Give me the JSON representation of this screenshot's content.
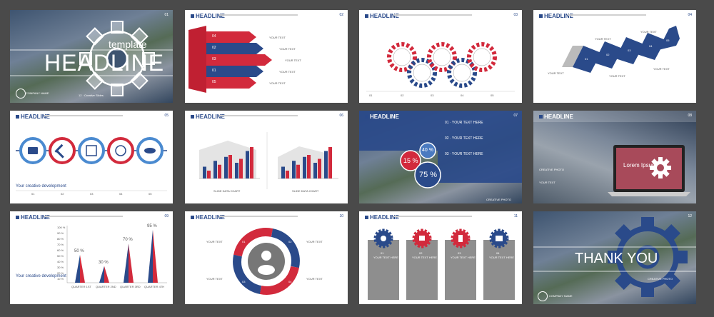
{
  "common": {
    "headline": "HEADLINE",
    "your_text": "YOUR TEXT",
    "your_text_here": "YOUR TEXT HERE",
    "creative_photo": "CREATIVE PHOTO",
    "your_creative_development": "Your creative development",
    "slide_data_chart": "SLIDE DATA CHART",
    "company_name": "COMPANY NAME"
  },
  "slides": {
    "s1": {
      "template": "template",
      "headline": "HEADLINE",
      "footer": "12 · Creative Slides",
      "page": "01"
    },
    "s2": {
      "page": "02",
      "steps": [
        "04",
        "03",
        "02",
        "01",
        "05"
      ]
    },
    "s3": {
      "page": "03",
      "numbers": [
        "01",
        "02",
        "03",
        "04",
        "05"
      ]
    },
    "s4": {
      "page": "04",
      "steps": [
        "01",
        "02",
        "03",
        "04",
        "05"
      ]
    },
    "s5": {
      "page": "05",
      "numbers": [
        "01",
        "02",
        "03",
        "04",
        "05"
      ]
    },
    "s6": {
      "page": "06"
    },
    "s7": {
      "page": "07",
      "items": [
        "01",
        "02",
        "03"
      ],
      "pct": [
        "15 %",
        "40 %",
        "75 %"
      ]
    },
    "s8": {
      "page": "08",
      "lorem": "Lorem Ipsum"
    },
    "s9": {
      "page": "09",
      "pct": [
        "50 %",
        "30 %",
        "70 %",
        "95 %"
      ],
      "quarters": [
        "QUARTER 1ST",
        "QUARTER 2ND",
        "QUARTER 3RD",
        "QUARTER 4TH"
      ],
      "yticks": [
        "100 %",
        "90 %",
        "80 %",
        "70 %",
        "60 %",
        "50 %",
        "40 %",
        "30 %",
        "20 %",
        "10 %"
      ]
    },
    "s10": {
      "page": "10",
      "numbers": [
        "01",
        "02",
        "03",
        "04"
      ]
    },
    "s11": {
      "page": "11",
      "numbers": [
        "01",
        "02",
        "03",
        "04"
      ]
    },
    "s12": {
      "page": "12",
      "thank_you": "THANK YOU"
    }
  },
  "chart_data": [
    {
      "type": "bar",
      "title": "",
      "series": [
        {
          "name": "",
          "values": [
            30,
            45,
            55,
            40,
            70
          ]
        },
        {
          "name": "",
          "values": [
            20,
            35,
            60,
            50,
            80
          ]
        }
      ]
    },
    {
      "type": "bar",
      "title": "",
      "categories": [
        "QUARTER 1ST",
        "QUARTER 2ND",
        "QUARTER 3RD",
        "QUARTER 4TH"
      ],
      "values": [
        50,
        30,
        70,
        95
      ],
      "ylim": [
        0,
        100
      ]
    }
  ],
  "colors": {
    "blue": "#2a4a8a",
    "red": "#d22a3c",
    "gray": "#9a9a9a"
  }
}
